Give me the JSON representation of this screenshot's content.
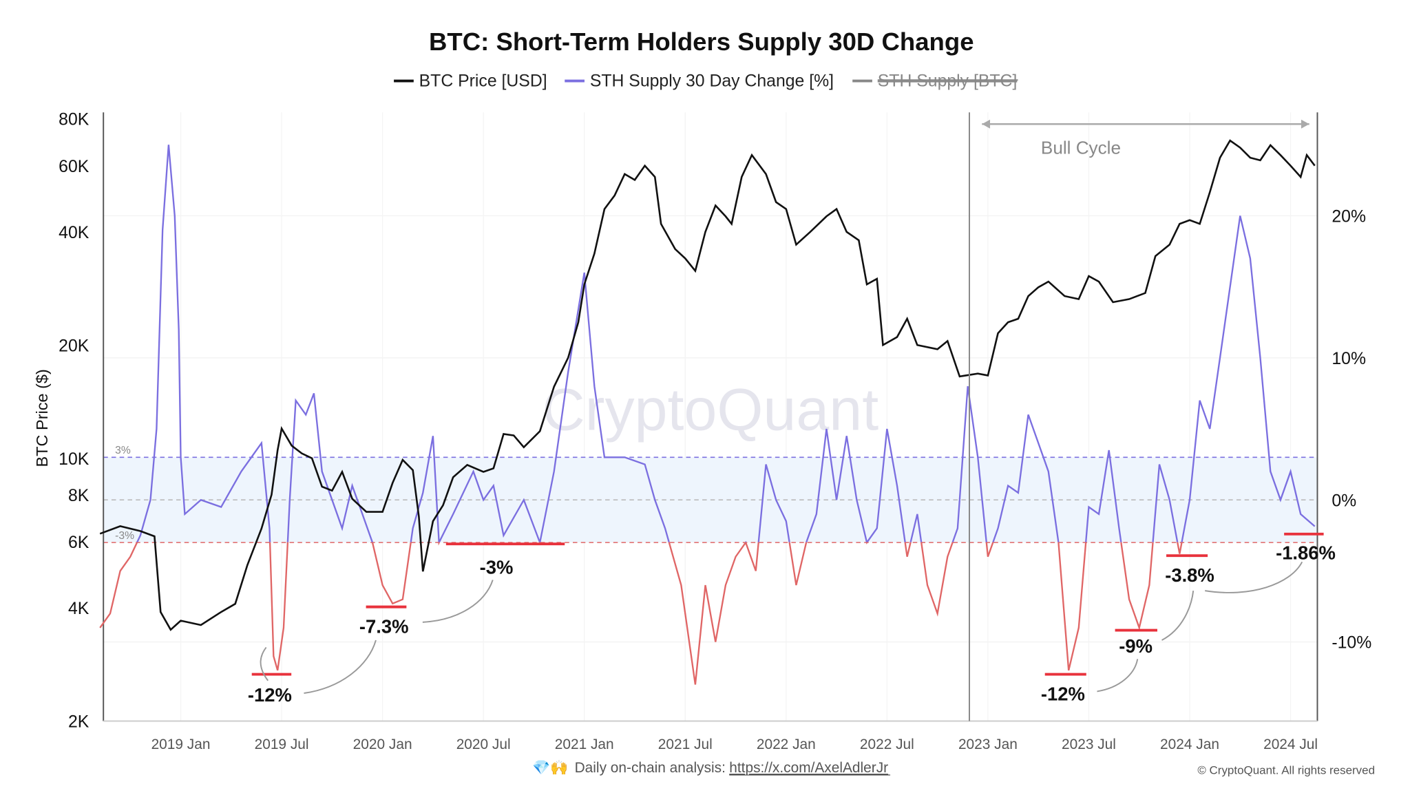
{
  "chart_data": {
    "type": "line",
    "title": "BTC: Short-Term Holders Supply 30D Change",
    "legend": [
      {
        "label": "BTC Price [USD]",
        "color": "#111111",
        "hidden": false
      },
      {
        "label": "STH Supply 30 Day Change [%]",
        "color": "#7b6fe0",
        "hidden": false
      },
      {
        "label": "STH Supply [BTC]",
        "color": "#888888",
        "hidden": true
      }
    ],
    "legend_position": "top-center",
    "ylabel_left": "BTC Price ($)",
    "y_left_scale": "log",
    "y_left_range": [
      2000,
      80000
    ],
    "y_left_ticks": [
      {
        "v": 80000,
        "l": "80K"
      },
      {
        "v": 60000,
        "l": "60K"
      },
      {
        "v": 40000,
        "l": "40K"
      },
      {
        "v": 20000,
        "l": "20K"
      },
      {
        "v": 10000,
        "l": "10K"
      },
      {
        "v": 8000,
        "l": "8K"
      },
      {
        "v": 6000,
        "l": "6K"
      },
      {
        "v": 4000,
        "l": "4K"
      },
      {
        "v": 2000,
        "l": "2K"
      }
    ],
    "y_right_range": [
      -15.5,
      27
    ],
    "y_right_ticks": [
      {
        "v": 20,
        "l": "20%"
      },
      {
        "v": 10,
        "l": "10%"
      },
      {
        "v": 0,
        "l": "0%"
      },
      {
        "v": -10,
        "l": "-10%"
      }
    ],
    "x_range": [
      2018.58,
      2024.65
    ],
    "x_ticks": [
      {
        "v": 2019.0,
        "l": "2019 Jan"
      },
      {
        "v": 2019.5,
        "l": "2019 Jul"
      },
      {
        "v": 2020.0,
        "l": "2020 Jan"
      },
      {
        "v": 2020.5,
        "l": "2020 Jul"
      },
      {
        "v": 2021.0,
        "l": "2021 Jan"
      },
      {
        "v": 2021.5,
        "l": "2021 Jul"
      },
      {
        "v": 2022.0,
        "l": "2022 Jan"
      },
      {
        "v": 2022.5,
        "l": "2022 Jul"
      },
      {
        "v": 2023.0,
        "l": "2023 Jan"
      },
      {
        "v": 2023.5,
        "l": "2023 Jul"
      },
      {
        "v": 2024.0,
        "l": "2024 Jan"
      },
      {
        "v": 2024.5,
        "l": "2024 Jul"
      }
    ],
    "band": {
      "upper": 3,
      "lower": -3,
      "upper_label": "3%",
      "lower_label": "-3%",
      "color": "#eef5fd"
    },
    "colors": {
      "price": "#111111",
      "sth_above": "#7b6fe0",
      "sth_below": "#e06666",
      "marker": "#e8323c",
      "annot": "#999999"
    },
    "price": [
      [
        2018.6,
        6300
      ],
      [
        2018.7,
        6600
      ],
      [
        2018.8,
        6400
      ],
      [
        2018.87,
        6200
      ],
      [
        2018.9,
        3900
      ],
      [
        2018.95,
        3500
      ],
      [
        2019.0,
        3700
      ],
      [
        2019.1,
        3600
      ],
      [
        2019.2,
        3900
      ],
      [
        2019.27,
        4100
      ],
      [
        2019.33,
        5200
      ],
      [
        2019.4,
        6500
      ],
      [
        2019.45,
        8000
      ],
      [
        2019.48,
        10500
      ],
      [
        2019.5,
        12000
      ],
      [
        2019.55,
        10800
      ],
      [
        2019.6,
        10300
      ],
      [
        2019.65,
        10000
      ],
      [
        2019.7,
        8400
      ],
      [
        2019.75,
        8200
      ],
      [
        2019.8,
        9200
      ],
      [
        2019.85,
        7800
      ],
      [
        2019.92,
        7200
      ],
      [
        2020.0,
        7200
      ],
      [
        2020.05,
        8600
      ],
      [
        2020.1,
        9900
      ],
      [
        2020.15,
        9300
      ],
      [
        2020.18,
        7000
      ],
      [
        2020.2,
        5000
      ],
      [
        2020.25,
        6800
      ],
      [
        2020.3,
        7500
      ],
      [
        2020.35,
        8900
      ],
      [
        2020.42,
        9600
      ],
      [
        2020.5,
        9200
      ],
      [
        2020.55,
        9400
      ],
      [
        2020.6,
        11600
      ],
      [
        2020.65,
        11500
      ],
      [
        2020.7,
        10700
      ],
      [
        2020.78,
        11800
      ],
      [
        2020.85,
        15500
      ],
      [
        2020.92,
        18500
      ],
      [
        2020.97,
        23000
      ],
      [
        2021.0,
        29000
      ],
      [
        2021.05,
        35000
      ],
      [
        2021.1,
        46000
      ],
      [
        2021.15,
        50000
      ],
      [
        2021.2,
        57000
      ],
      [
        2021.25,
        55000
      ],
      [
        2021.3,
        60000
      ],
      [
        2021.35,
        56000
      ],
      [
        2021.38,
        42000
      ],
      [
        2021.45,
        36000
      ],
      [
        2021.5,
        34000
      ],
      [
        2021.55,
        31500
      ],
      [
        2021.6,
        40000
      ],
      [
        2021.65,
        47000
      ],
      [
        2021.7,
        44000
      ],
      [
        2021.73,
        42000
      ],
      [
        2021.78,
        56000
      ],
      [
        2021.83,
        64000
      ],
      [
        2021.9,
        57000
      ],
      [
        2021.95,
        48000
      ],
      [
        2022.0,
        46000
      ],
      [
        2022.05,
        37000
      ],
      [
        2022.12,
        40000
      ],
      [
        2022.2,
        44000
      ],
      [
        2022.25,
        46000
      ],
      [
        2022.3,
        40000
      ],
      [
        2022.36,
        38000
      ],
      [
        2022.4,
        29000
      ],
      [
        2022.45,
        30000
      ],
      [
        2022.48,
        20000
      ],
      [
        2022.55,
        21000
      ],
      [
        2022.6,
        23500
      ],
      [
        2022.65,
        20000
      ],
      [
        2022.75,
        19500
      ],
      [
        2022.8,
        20500
      ],
      [
        2022.86,
        16500
      ],
      [
        2022.95,
        16800
      ],
      [
        2023.0,
        16600
      ],
      [
        2023.05,
        21500
      ],
      [
        2023.1,
        23000
      ],
      [
        2023.15,
        23500
      ],
      [
        2023.2,
        27000
      ],
      [
        2023.25,
        28500
      ],
      [
        2023.3,
        29500
      ],
      [
        2023.38,
        27000
      ],
      [
        2023.45,
        26500
      ],
      [
        2023.5,
        30500
      ],
      [
        2023.55,
        29500
      ],
      [
        2023.62,
        26000
      ],
      [
        2023.7,
        26500
      ],
      [
        2023.78,
        27500
      ],
      [
        2023.83,
        34500
      ],
      [
        2023.9,
        37000
      ],
      [
        2023.95,
        42000
      ],
      [
        2024.0,
        43000
      ],
      [
        2024.05,
        42000
      ],
      [
        2024.1,
        51000
      ],
      [
        2024.15,
        63000
      ],
      [
        2024.2,
        70000
      ],
      [
        2024.25,
        67000
      ],
      [
        2024.3,
        63000
      ],
      [
        2024.35,
        62000
      ],
      [
        2024.4,
        68000
      ],
      [
        2024.45,
        64000
      ],
      [
        2024.5,
        60000
      ],
      [
        2024.55,
        56000
      ],
      [
        2024.58,
        64000
      ],
      [
        2024.62,
        60000
      ]
    ],
    "sth_change": [
      [
        2018.6,
        -9
      ],
      [
        2018.65,
        -8
      ],
      [
        2018.7,
        -5
      ],
      [
        2018.75,
        -4
      ],
      [
        2018.8,
        -2.5
      ],
      [
        2018.85,
        0
      ],
      [
        2018.88,
        5
      ],
      [
        2018.91,
        19
      ],
      [
        2018.94,
        25
      ],
      [
        2018.97,
        20
      ],
      [
        2018.99,
        12
      ],
      [
        2019.0,
        3
      ],
      [
        2019.02,
        -1
      ],
      [
        2019.1,
        0
      ],
      [
        2019.2,
        -0.5
      ],
      [
        2019.3,
        2
      ],
      [
        2019.4,
        4
      ],
      [
        2019.44,
        -2
      ],
      [
        2019.46,
        -11
      ],
      [
        2019.48,
        -12
      ],
      [
        2019.51,
        -9
      ],
      [
        2019.54,
        0
      ],
      [
        2019.57,
        7
      ],
      [
        2019.62,
        6
      ],
      [
        2019.66,
        7.5
      ],
      [
        2019.7,
        2
      ],
      [
        2019.75,
        0
      ],
      [
        2019.8,
        -2
      ],
      [
        2019.85,
        1
      ],
      [
        2019.9,
        -1
      ],
      [
        2019.95,
        -3
      ],
      [
        2020.0,
        -6
      ],
      [
        2020.05,
        -7.3
      ],
      [
        2020.1,
        -7
      ],
      [
        2020.15,
        -2
      ],
      [
        2020.2,
        0.5
      ],
      [
        2020.25,
        4.5
      ],
      [
        2020.28,
        -3
      ],
      [
        2020.35,
        -1
      ],
      [
        2020.45,
        2
      ],
      [
        2020.5,
        0
      ],
      [
        2020.55,
        1
      ],
      [
        2020.6,
        -2.5
      ],
      [
        2020.7,
        0
      ],
      [
        2020.78,
        -3
      ],
      [
        2020.85,
        2
      ],
      [
        2020.92,
        9
      ],
      [
        2021.0,
        16
      ],
      [
        2021.05,
        8
      ],
      [
        2021.1,
        3
      ],
      [
        2021.2,
        3
      ],
      [
        2021.3,
        2.5
      ],
      [
        2021.35,
        0
      ],
      [
        2021.4,
        -2
      ],
      [
        2021.48,
        -6
      ],
      [
        2021.55,
        -13
      ],
      [
        2021.6,
        -6
      ],
      [
        2021.65,
        -10
      ],
      [
        2021.7,
        -6
      ],
      [
        2021.75,
        -4
      ],
      [
        2021.8,
        -3
      ],
      [
        2021.85,
        -5
      ],
      [
        2021.9,
        2.5
      ],
      [
        2021.95,
        0
      ],
      [
        2022.0,
        -1.5
      ],
      [
        2022.05,
        -6
      ],
      [
        2022.1,
        -3
      ],
      [
        2022.15,
        -1
      ],
      [
        2022.2,
        5
      ],
      [
        2022.25,
        0
      ],
      [
        2022.3,
        4.5
      ],
      [
        2022.35,
        0
      ],
      [
        2022.4,
        -3
      ],
      [
        2022.45,
        -2
      ],
      [
        2022.5,
        5
      ],
      [
        2022.55,
        1
      ],
      [
        2022.6,
        -4
      ],
      [
        2022.65,
        -1
      ],
      [
        2022.7,
        -6
      ],
      [
        2022.75,
        -8
      ],
      [
        2022.8,
        -4
      ],
      [
        2022.85,
        -2
      ],
      [
        2022.9,
        8
      ],
      [
        2022.95,
        3
      ],
      [
        2023.0,
        -4
      ],
      [
        2023.05,
        -2
      ],
      [
        2023.1,
        1
      ],
      [
        2023.15,
        0.5
      ],
      [
        2023.2,
        6
      ],
      [
        2023.25,
        4
      ],
      [
        2023.3,
        2
      ],
      [
        2023.35,
        -3
      ],
      [
        2023.4,
        -12
      ],
      [
        2023.45,
        -9
      ],
      [
        2023.5,
        -0.5
      ],
      [
        2023.55,
        -1
      ],
      [
        2023.6,
        3.5
      ],
      [
        2023.65,
        -2
      ],
      [
        2023.7,
        -7
      ],
      [
        2023.75,
        -9
      ],
      [
        2023.8,
        -6
      ],
      [
        2023.85,
        2.5
      ],
      [
        2023.9,
        0
      ],
      [
        2023.95,
        -3.8
      ],
      [
        2024.0,
        0
      ],
      [
        2024.05,
        7
      ],
      [
        2024.1,
        5
      ],
      [
        2024.15,
        10
      ],
      [
        2024.2,
        15
      ],
      [
        2024.25,
        20
      ],
      [
        2024.3,
        17
      ],
      [
        2024.35,
        10
      ],
      [
        2024.4,
        2
      ],
      [
        2024.45,
        0
      ],
      [
        2024.5,
        2
      ],
      [
        2024.55,
        -1
      ],
      [
        2024.62,
        -1.86
      ]
    ],
    "annotations": [
      {
        "text": "-12%",
        "x": 2019.48,
        "y": -12
      },
      {
        "text": "-7.3%",
        "x": 2020.05,
        "y": -7.3
      },
      {
        "text": "-3%",
        "x": 2020.6,
        "y": -3
      },
      {
        "text": "-12%",
        "x": 2023.4,
        "y": -12
      },
      {
        "text": "-9%",
        "x": 2023.75,
        "y": -9
      },
      {
        "text": "-3.8%",
        "x": 2023.95,
        "y": -3.8
      },
      {
        "text": "-1.86%",
        "x": 2024.62,
        "y": -1.86
      }
    ],
    "bull_cycle": {
      "label": "Bull Cycle",
      "start": 2022.88,
      "end": 2024.6
    }
  },
  "watermark": "CryptoQuant",
  "footer": {
    "analysis_label": "Daily on-chain analysis:",
    "analysis_link": "https://x.com/AxelAdlerJr",
    "copyright": "© CryptoQuant. All rights reserved"
  }
}
